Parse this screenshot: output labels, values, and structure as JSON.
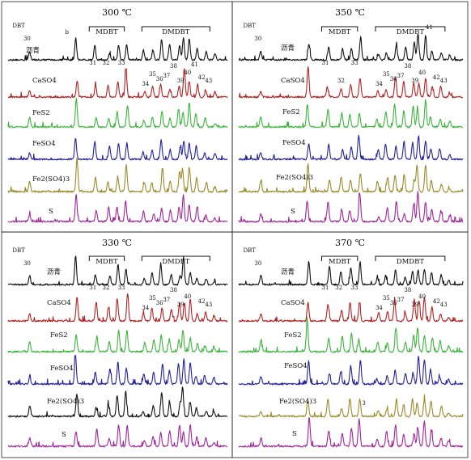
{
  "chart_data": [
    {
      "type": "line",
      "title": "300 ℃",
      "xlabel": "",
      "ylabel": "",
      "groups": [
        "MDBT",
        "DMDBT"
      ],
      "series": [
        {
          "name": "沥青",
          "color": "#111111",
          "labels": [
            "DBT",
            "30",
            "b",
            "31",
            "32",
            "33"
          ]
        },
        {
          "name": "CaSO4",
          "color": "#b22222",
          "labels": [
            "34",
            "35",
            "36",
            "37",
            "38",
            "39",
            "40",
            "41",
            "42",
            "43"
          ]
        },
        {
          "name": "FeS2",
          "color": "#3cb43c",
          "labels": []
        },
        {
          "name": "FeSO4",
          "color": "#22229a",
          "labels": []
        },
        {
          "name": "Fe2(SO4)3",
          "color": "#9b8a2a",
          "labels": []
        },
        {
          "name": "S",
          "color": "#a0259b",
          "labels": []
        }
      ]
    },
    {
      "type": "line",
      "title": "350 ℃",
      "xlabel": "",
      "ylabel": "",
      "groups": [
        "MDBT",
        "DMDBT"
      ],
      "series": [
        {
          "name": "沥青",
          "color": "#111111",
          "labels": [
            "DBT",
            "30",
            "31",
            "33",
            "41"
          ]
        },
        {
          "name": "CaSO4",
          "color": "#b22222",
          "labels": [
            "32",
            "34",
            "35",
            "36",
            "37",
            "38",
            "39",
            "40",
            "42",
            "43"
          ]
        },
        {
          "name": "FeS2",
          "color": "#3cb43c",
          "labels": []
        },
        {
          "name": "FeSO4",
          "color": "#22229a",
          "labels": []
        },
        {
          "name": "Fe2(SO4)3",
          "color": "#9b8a2a",
          "labels": []
        },
        {
          "name": "S",
          "color": "#a0259b",
          "labels": []
        }
      ]
    },
    {
      "type": "line",
      "title": "330 ℃",
      "xlabel": "",
      "ylabel": "",
      "groups": [
        "MDBT",
        "DMDBT"
      ],
      "series": [
        {
          "name": "沥青",
          "color": "#111111",
          "labels": [
            "DBT",
            "30",
            "31",
            "32",
            "33"
          ]
        },
        {
          "name": "CaSO4",
          "color": "#b22222",
          "labels": [
            "34",
            "35",
            "36",
            "37",
            "38",
            "39",
            "40",
            "42",
            "43"
          ]
        },
        {
          "name": "FeS2",
          "color": "#3cb43c",
          "labels": []
        },
        {
          "name": "FeSO4",
          "color": "#22229a",
          "labels": []
        },
        {
          "name": "Fe2(SO4)3",
          "color": "#111111",
          "labels": []
        },
        {
          "name": "S",
          "color": "#a0259b",
          "labels": []
        }
      ]
    },
    {
      "type": "line",
      "title": "370 ℃",
      "xlabel": "",
      "ylabel": "",
      "groups": [
        "MDBT",
        "DMDBT"
      ],
      "series": [
        {
          "name": "沥青",
          "color": "#111111",
          "labels": [
            "DBT",
            "30",
            "31",
            "32",
            "33"
          ]
        },
        {
          "name": "CaSO4",
          "color": "#b22222",
          "labels": [
            "34",
            "35",
            "36",
            "37",
            "38",
            "39",
            "40",
            "42",
            "43"
          ]
        },
        {
          "name": "FeS2",
          "color": "#3cb43c",
          "labels": []
        },
        {
          "name": "FeSO4",
          "color": "#22229a",
          "labels": []
        },
        {
          "name": "Fe2(SO4)3",
          "color": "#9b8a2a",
          "labels": [
            "3"
          ]
        },
        {
          "name": "S",
          "color": "#a0259b",
          "labels": []
        }
      ]
    }
  ]
}
